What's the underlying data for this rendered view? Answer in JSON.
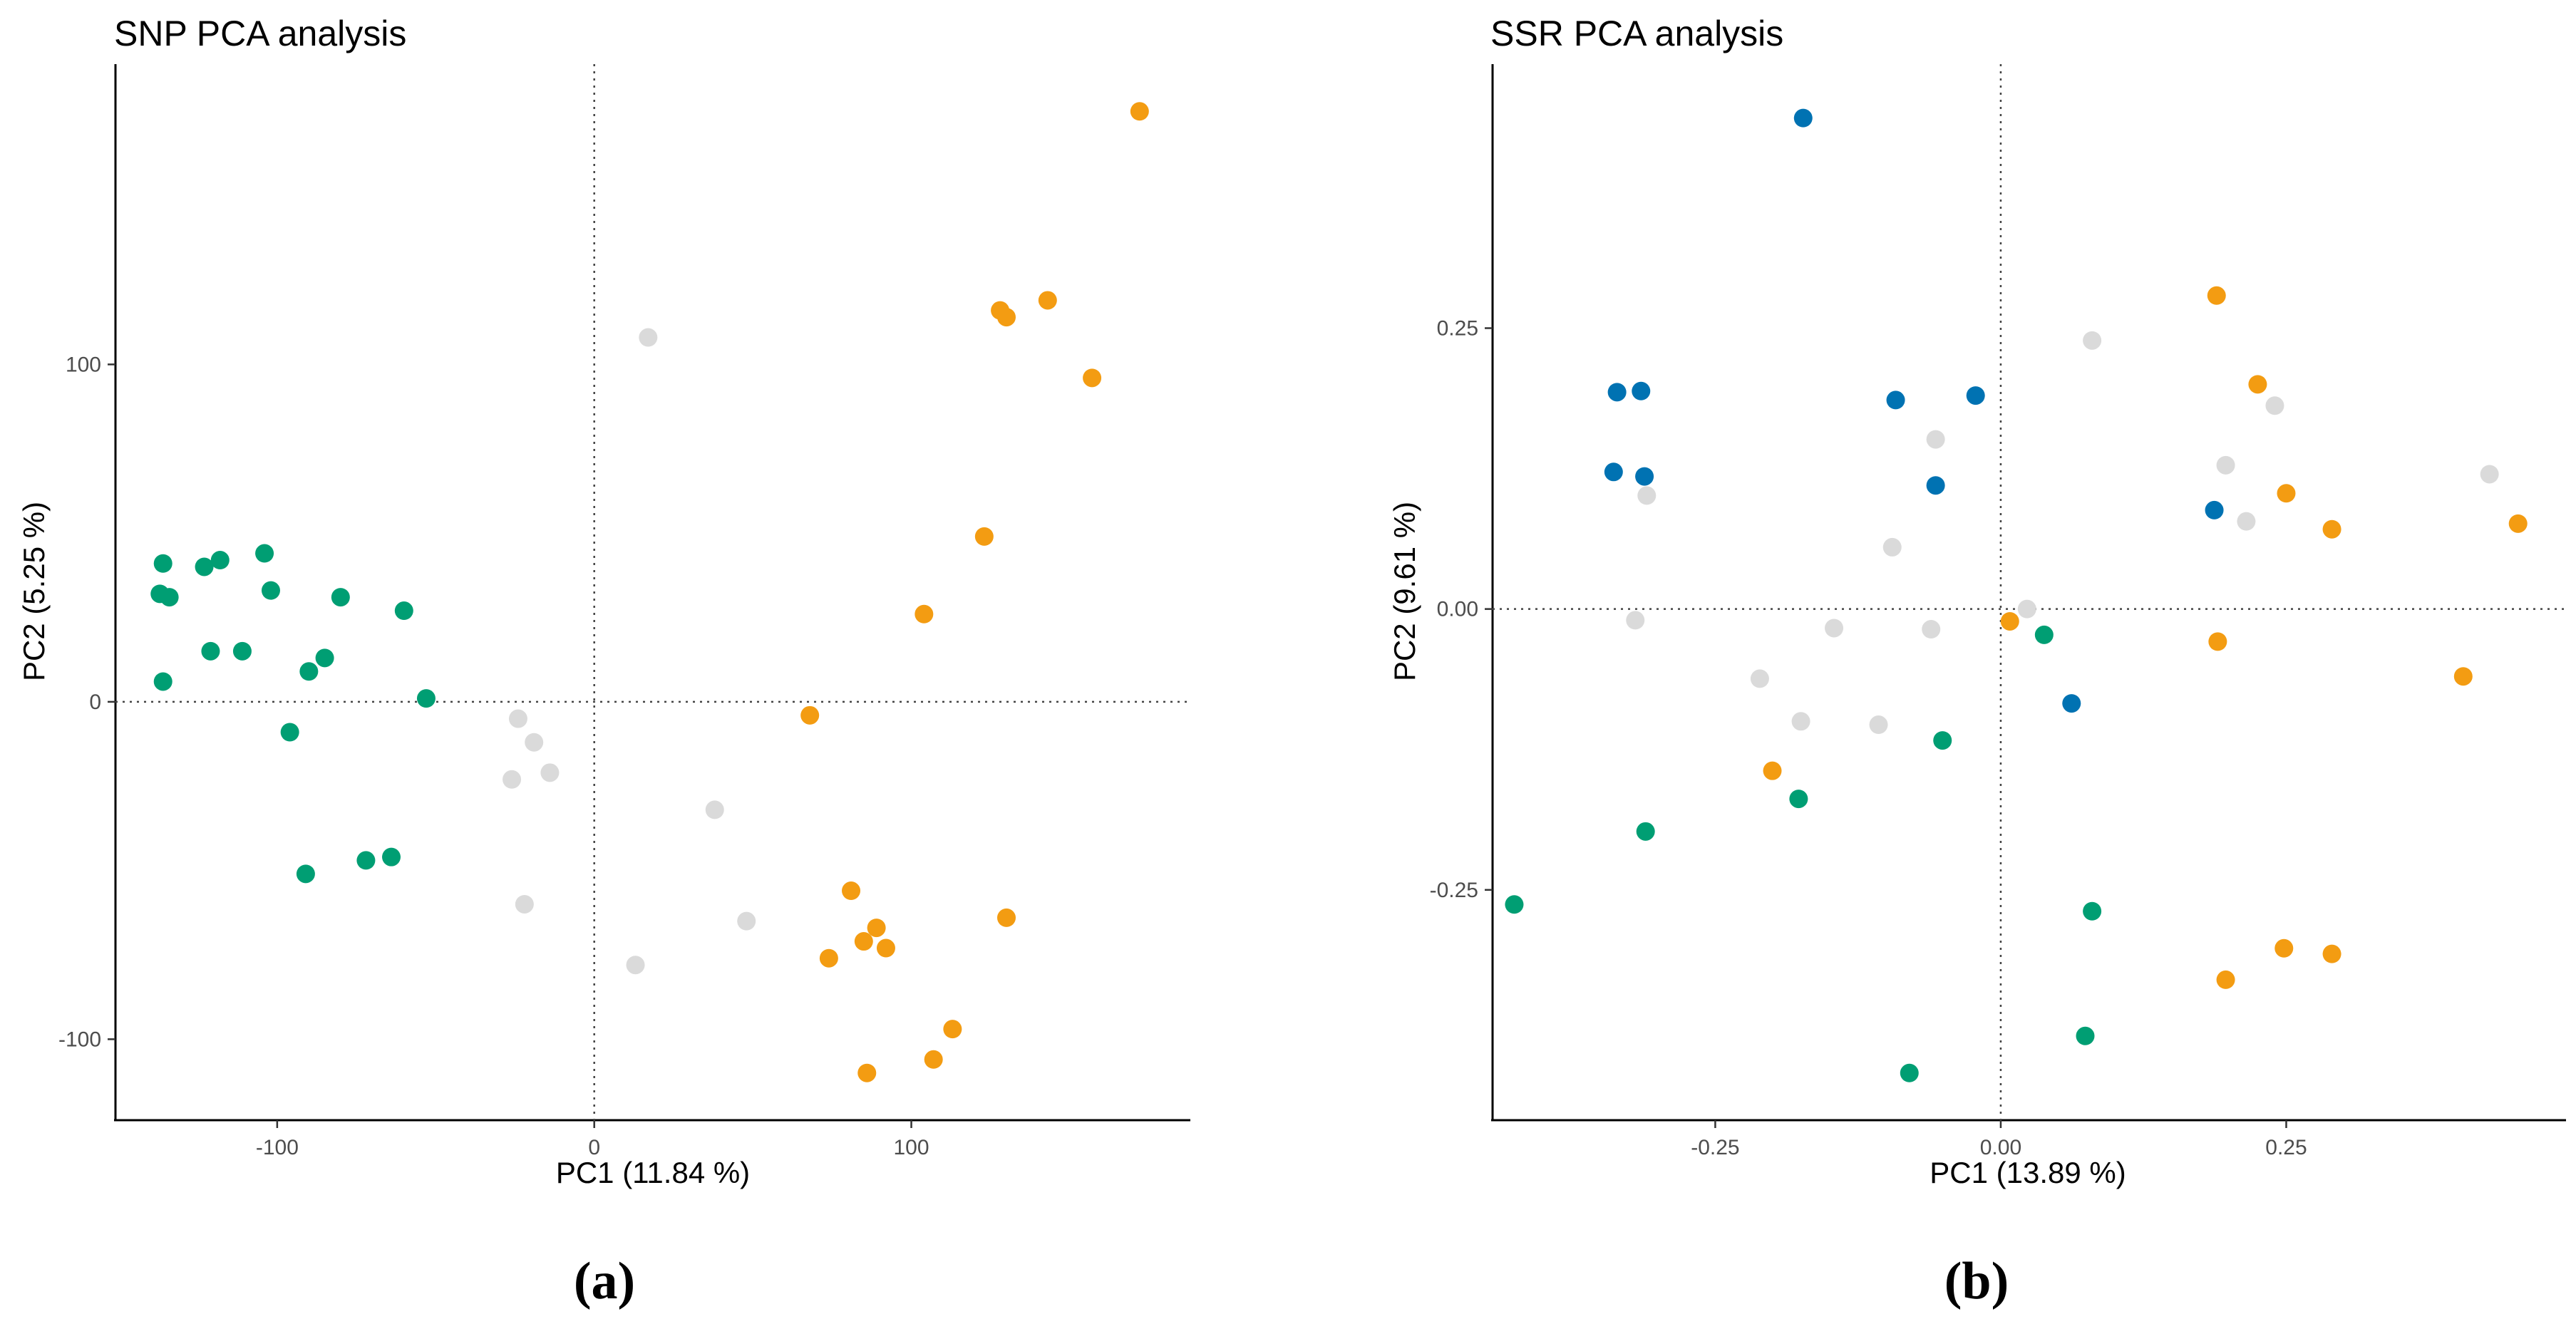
{
  "colors": {
    "green": "#009E73",
    "orange": "#F39C12",
    "grey": "#DADADA",
    "blue": "#0072B2"
  },
  "chart_data": [
    {
      "type": "scatter",
      "panel_label": "(a)",
      "title": "SNP PCA analysis",
      "xlabel": "PC1 (11.84 %)",
      "ylabel": "PC2 (5.25 %)",
      "xlim": [
        -151,
        188
      ],
      "ylim": [
        -124,
        189
      ],
      "xticks": [
        -100,
        0,
        100
      ],
      "xtick_labels": [
        "-100",
        "0",
        "100"
      ],
      "yticks": [
        -100,
        0,
        100
      ],
      "ytick_labels": [
        "-100",
        "0",
        "100"
      ],
      "grid": false,
      "reference_lines": {
        "x": 0,
        "y": 0,
        "style": "dotted"
      },
      "points": [
        {
          "x": -136,
          "y": 41,
          "group": "green"
        },
        {
          "x": -137,
          "y": 32,
          "group": "green"
        },
        {
          "x": -134,
          "y": 31,
          "group": "green"
        },
        {
          "x": -123,
          "y": 40,
          "group": "green"
        },
        {
          "x": -118,
          "y": 42,
          "group": "green"
        },
        {
          "x": -104,
          "y": 44,
          "group": "green"
        },
        {
          "x": -102,
          "y": 33,
          "group": "green"
        },
        {
          "x": -80,
          "y": 31,
          "group": "green"
        },
        {
          "x": -60,
          "y": 27,
          "group": "green"
        },
        {
          "x": -121,
          "y": 15,
          "group": "green"
        },
        {
          "x": -111,
          "y": 15,
          "group": "green"
        },
        {
          "x": -85,
          "y": 13,
          "group": "green"
        },
        {
          "x": -90,
          "y": 9,
          "group": "green"
        },
        {
          "x": -136,
          "y": 6,
          "group": "green"
        },
        {
          "x": -53,
          "y": 1,
          "group": "green"
        },
        {
          "x": -96,
          "y": -9,
          "group": "green"
        },
        {
          "x": -91,
          "y": -51,
          "group": "green"
        },
        {
          "x": -72,
          "y": -47,
          "group": "green"
        },
        {
          "x": -64,
          "y": -46,
          "group": "green"
        },
        {
          "x": 17,
          "y": 108,
          "group": "grey"
        },
        {
          "x": -24,
          "y": -5,
          "group": "grey"
        },
        {
          "x": -19,
          "y": -12,
          "group": "grey"
        },
        {
          "x": -26,
          "y": -23,
          "group": "grey"
        },
        {
          "x": -14,
          "y": -21,
          "group": "grey"
        },
        {
          "x": 38,
          "y": -32,
          "group": "grey"
        },
        {
          "x": 48,
          "y": -65,
          "group": "grey"
        },
        {
          "x": -22,
          "y": -60,
          "group": "grey"
        },
        {
          "x": 13,
          "y": -78,
          "group": "grey"
        },
        {
          "x": 172,
          "y": 175,
          "group": "orange"
        },
        {
          "x": 128,
          "y": 116,
          "group": "orange"
        },
        {
          "x": 130,
          "y": 114,
          "group": "orange"
        },
        {
          "x": 143,
          "y": 119,
          "group": "orange"
        },
        {
          "x": 157,
          "y": 96,
          "group": "orange"
        },
        {
          "x": 123,
          "y": 49,
          "group": "orange"
        },
        {
          "x": 104,
          "y": 26,
          "group": "orange"
        },
        {
          "x": 68,
          "y": -4,
          "group": "orange"
        },
        {
          "x": 81,
          "y": -56,
          "group": "orange"
        },
        {
          "x": 89,
          "y": -67,
          "group": "orange"
        },
        {
          "x": 85,
          "y": -71,
          "group": "orange"
        },
        {
          "x": 92,
          "y": -73,
          "group": "orange"
        },
        {
          "x": 74,
          "y": -76,
          "group": "orange"
        },
        {
          "x": 130,
          "y": -64,
          "group": "orange"
        },
        {
          "x": 113,
          "y": -97,
          "group": "orange"
        },
        {
          "x": 107,
          "y": -106,
          "group": "orange"
        },
        {
          "x": 86,
          "y": -110,
          "group": "orange"
        }
      ]
    },
    {
      "type": "scatter",
      "panel_label": "(b)",
      "title": "SSR PCA analysis",
      "xlabel": "PC1 (13.89 %)",
      "ylabel": "PC2 (9.61 %)",
      "xlim": [
        -0.445,
        0.495
      ],
      "ylim": [
        -0.455,
        0.485
      ],
      "xticks": [
        -0.25,
        0.0,
        0.25
      ],
      "xtick_labels": [
        "-0.25",
        "0.00",
        "0.25"
      ],
      "yticks": [
        -0.25,
        0.0,
        0.25
      ],
      "ytick_labels": [
        "-0.25",
        "0.00",
        "0.25"
      ],
      "grid": false,
      "reference_lines": {
        "x": 0,
        "y": 0,
        "style": "dotted"
      },
      "points": [
        {
          "x": -0.173,
          "y": 0.437,
          "group": "blue"
        },
        {
          "x": -0.336,
          "y": 0.193,
          "group": "blue"
        },
        {
          "x": -0.315,
          "y": 0.194,
          "group": "blue"
        },
        {
          "x": -0.339,
          "y": 0.122,
          "group": "blue"
        },
        {
          "x": -0.312,
          "y": 0.118,
          "group": "blue"
        },
        {
          "x": -0.092,
          "y": 0.186,
          "group": "blue"
        },
        {
          "x": -0.022,
          "y": 0.19,
          "group": "blue"
        },
        {
          "x": -0.057,
          "y": 0.11,
          "group": "blue"
        },
        {
          "x": 0.187,
          "y": 0.088,
          "group": "blue"
        },
        {
          "x": 0.062,
          "y": -0.084,
          "group": "blue"
        },
        {
          "x": 0.08,
          "y": 0.239,
          "group": "grey"
        },
        {
          "x": 0.197,
          "y": 0.128,
          "group": "grey"
        },
        {
          "x": 0.24,
          "y": 0.181,
          "group": "grey"
        },
        {
          "x": 0.215,
          "y": 0.078,
          "group": "grey"
        },
        {
          "x": 0.428,
          "y": 0.12,
          "group": "grey"
        },
        {
          "x": -0.057,
          "y": 0.151,
          "group": "grey"
        },
        {
          "x": -0.31,
          "y": 0.101,
          "group": "grey"
        },
        {
          "x": -0.095,
          "y": 0.055,
          "group": "grey"
        },
        {
          "x": -0.32,
          "y": -0.01,
          "group": "grey"
        },
        {
          "x": -0.146,
          "y": -0.017,
          "group": "grey"
        },
        {
          "x": -0.061,
          "y": -0.018,
          "group": "grey"
        },
        {
          "x": 0.023,
          "y": 0.0,
          "group": "grey"
        },
        {
          "x": -0.211,
          "y": -0.062,
          "group": "grey"
        },
        {
          "x": -0.175,
          "y": -0.1,
          "group": "grey"
        },
        {
          "x": -0.107,
          "y": -0.103,
          "group": "grey"
        },
        {
          "x": 0.189,
          "y": 0.279,
          "group": "orange"
        },
        {
          "x": 0.225,
          "y": 0.2,
          "group": "orange"
        },
        {
          "x": 0.25,
          "y": 0.103,
          "group": "orange"
        },
        {
          "x": 0.29,
          "y": 0.071,
          "group": "orange"
        },
        {
          "x": 0.453,
          "y": 0.076,
          "group": "orange"
        },
        {
          "x": 0.008,
          "y": -0.011,
          "group": "orange"
        },
        {
          "x": 0.19,
          "y": -0.029,
          "group": "orange"
        },
        {
          "x": 0.405,
          "y": -0.06,
          "group": "orange"
        },
        {
          "x": -0.2,
          "y": -0.144,
          "group": "orange"
        },
        {
          "x": 0.248,
          "y": -0.302,
          "group": "orange"
        },
        {
          "x": 0.29,
          "y": -0.307,
          "group": "orange"
        },
        {
          "x": 0.197,
          "y": -0.33,
          "group": "orange"
        },
        {
          "x": 0.038,
          "y": -0.023,
          "group": "green"
        },
        {
          "x": -0.051,
          "y": -0.117,
          "group": "green"
        },
        {
          "x": -0.177,
          "y": -0.169,
          "group": "green"
        },
        {
          "x": -0.311,
          "y": -0.198,
          "group": "green"
        },
        {
          "x": -0.426,
          "y": -0.263,
          "group": "green"
        },
        {
          "x": 0.08,
          "y": -0.269,
          "group": "green"
        },
        {
          "x": 0.074,
          "y": -0.38,
          "group": "green"
        },
        {
          "x": -0.08,
          "y": -0.413,
          "group": "green"
        }
      ]
    }
  ]
}
